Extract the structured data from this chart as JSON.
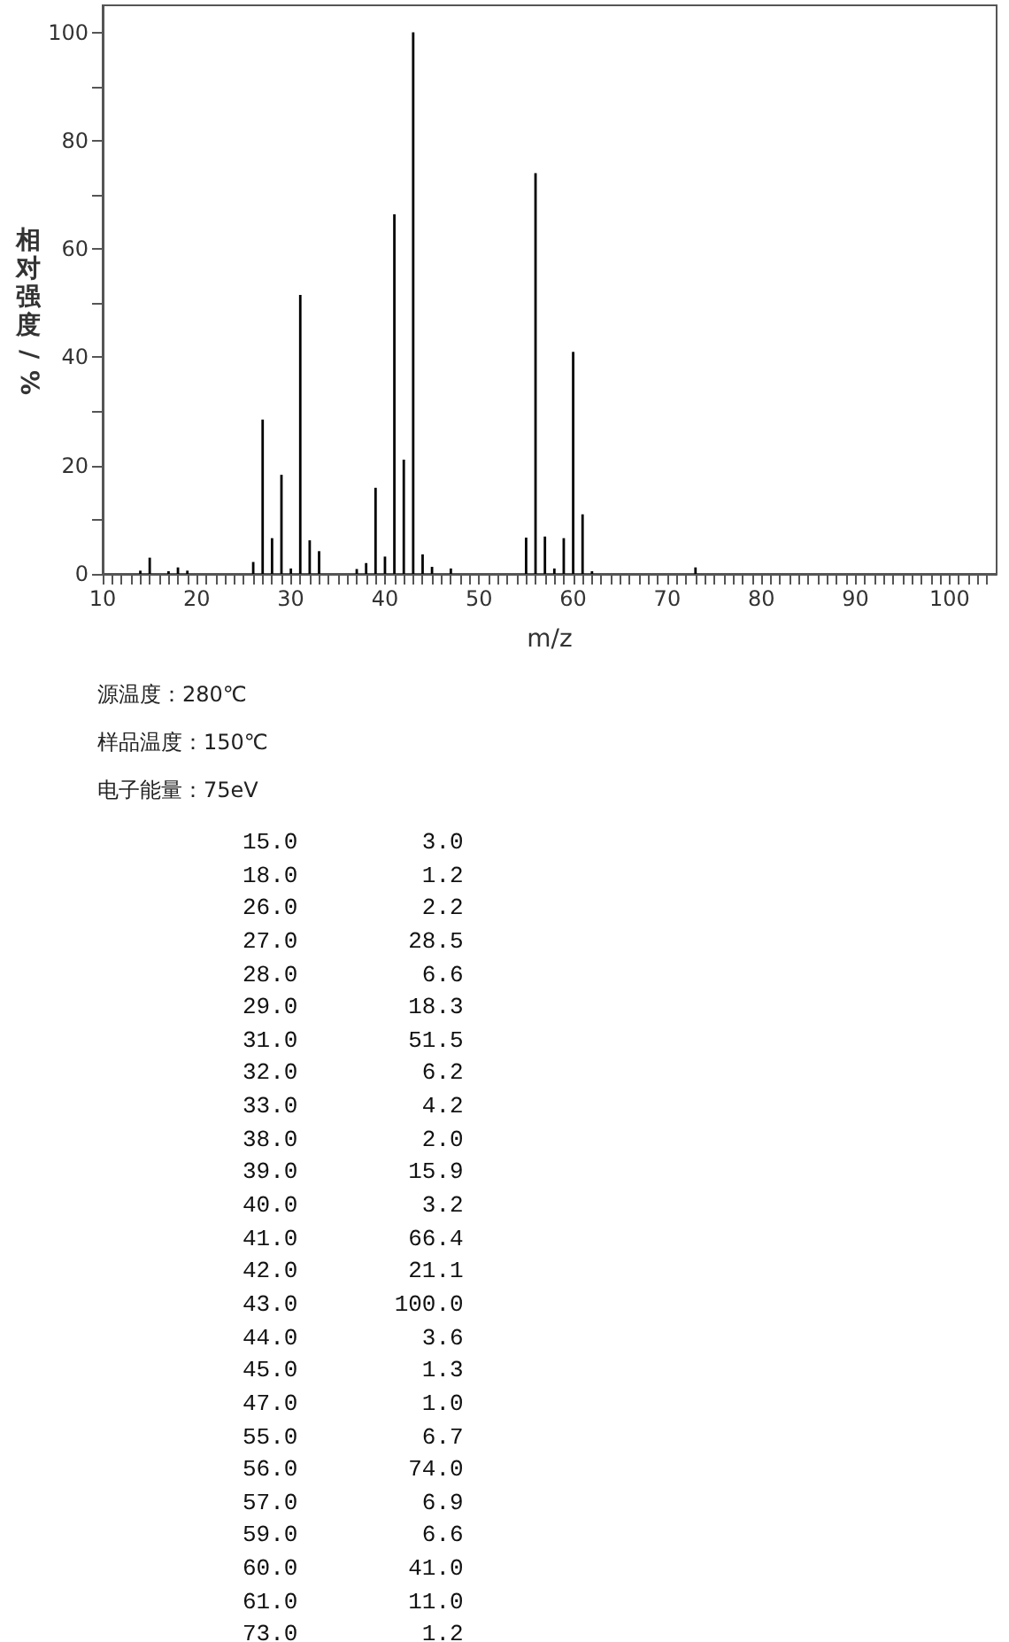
{
  "chart_data": {
    "type": "bar",
    "xlabel": "m/z",
    "ylabel": "相对强度/%",
    "x": [
      14,
      15,
      17,
      18,
      19,
      26,
      27,
      28,
      29,
      30,
      31,
      32,
      33,
      37,
      38,
      39,
      40,
      41,
      42,
      43,
      44,
      45,
      47,
      55,
      56,
      57,
      58,
      59,
      60,
      61,
      62,
      73
    ],
    "series": [
      {
        "color": "#000000",
        "values": [
          0.6,
          3.0,
          0.5,
          1.2,
          0.6,
          2.2,
          28.5,
          6.6,
          18.3,
          1.0,
          51.5,
          6.2,
          4.2,
          0.9,
          2.0,
          15.9,
          3.2,
          66.4,
          21.1,
          100.0,
          3.6,
          1.3,
          1.0,
          6.7,
          74.0,
          6.9,
          1.0,
          6.6,
          41.0,
          11.0,
          0.5,
          1.2
        ]
      }
    ],
    "xlim": [
      10,
      105
    ],
    "xticks": [
      10,
      {
        "value": 11,
        "label": null
      },
      {
        "value": 12,
        "label": null
      },
      {
        "value": 13,
        "label": null
      },
      {
        "value": 14,
        "label": null
      },
      {
        "value": 15,
        "label": null
      },
      {
        "value": 16,
        "label": null
      },
      {
        "value": 17,
        "label": null
      },
      {
        "value": 18,
        "label": null
      },
      {
        "value": 19,
        "label": null
      },
      20,
      {
        "value": 21,
        "label": null
      },
      {
        "value": 22,
        "label": null
      },
      {
        "value": 23,
        "label": null
      },
      {
        "value": 24,
        "label": null
      },
      {
        "value": 25,
        "label": null
      },
      {
        "value": 26,
        "label": null
      },
      {
        "value": 27,
        "label": null
      },
      {
        "value": 28,
        "label": null
      },
      {
        "value": 29,
        "label": null
      },
      30,
      {
        "value": 31,
        "label": null
      },
      {
        "value": 32,
        "label": null
      },
      {
        "value": 33,
        "label": null
      },
      {
        "value": 34,
        "label": null
      },
      {
        "value": 35,
        "label": null
      },
      {
        "value": 36,
        "label": null
      },
      {
        "value": 37,
        "label": null
      },
      {
        "value": 38,
        "label": null
      },
      {
        "value": 39,
        "label": null
      },
      40,
      {
        "value": 41,
        "label": null
      },
      {
        "value": 42,
        "label": null
      },
      {
        "value": 43,
        "label": null
      },
      {
        "value": 44,
        "label": null
      },
      {
        "value": 45,
        "label": null
      },
      {
        "value": 46,
        "label": null
      },
      {
        "value": 47,
        "label": null
      },
      {
        "value": 48,
        "label": null
      },
      {
        "value": 49,
        "label": null
      },
      50,
      {
        "value": 51,
        "label": null
      },
      {
        "value": 52,
        "label": null
      },
      {
        "value": 53,
        "label": null
      },
      {
        "value": 54,
        "label": null
      },
      {
        "value": 55,
        "label": null
      },
      {
        "value": 56,
        "label": null
      },
      {
        "value": 57,
        "label": null
      },
      {
        "value": 58,
        "label": null
      },
      {
        "value": 59,
        "label": null
      },
      60,
      {
        "value": 61,
        "label": null
      },
      {
        "value": 62,
        "label": null
      },
      {
        "value": 63,
        "label": null
      },
      {
        "value": 64,
        "label": null
      },
      {
        "value": 65,
        "label": null
      },
      {
        "value": 66,
        "label": null
      },
      {
        "value": 67,
        "label": null
      },
      {
        "value": 68,
        "label": null
      },
      {
        "value": 69,
        "label": null
      },
      70,
      {
        "value": 71,
        "label": null
      },
      {
        "value": 72,
        "label": null
      },
      {
        "value": 73,
        "label": null
      },
      {
        "value": 74,
        "label": null
      },
      {
        "value": 75,
        "label": null
      },
      {
        "value": 76,
        "label": null
      },
      {
        "value": 77,
        "label": null
      },
      {
        "value": 78,
        "label": null
      },
      {
        "value": 79,
        "label": null
      },
      80,
      {
        "value": 81,
        "label": null
      },
      {
        "value": 82,
        "label": null
      },
      {
        "value": 83,
        "label": null
      },
      {
        "value": 84,
        "label": null
      },
      {
        "value": 85,
        "label": null
      },
      {
        "value": 86,
        "label": null
      },
      {
        "value": 87,
        "label": null
      },
      {
        "value": 88,
        "label": null
      },
      {
        "value": 89,
        "label": null
      },
      90,
      {
        "value": 91,
        "label": null
      },
      {
        "value": 92,
        "label": null
      },
      {
        "value": 93,
        "label": null
      },
      {
        "value": 94,
        "label": null
      },
      {
        "value": 95,
        "label": null
      },
      {
        "value": 96,
        "label": null
      },
      {
        "value": 97,
        "label": null
      },
      {
        "value": 98,
        "label": null
      },
      {
        "value": 99,
        "label": null
      },
      100,
      {
        "value": 101,
        "label": null
      },
      {
        "value": 102,
        "label": null
      },
      {
        "value": 103,
        "label": null
      },
      {
        "value": 104,
        "label": null
      }
    ],
    "ylim": [
      0,
      105
    ],
    "yticks": [
      0,
      {
        "value": 10,
        "label": null
      },
      20,
      {
        "value": 30,
        "label": null
      },
      40,
      {
        "value": 50,
        "label": null
      },
      60,
      {
        "value": 70,
        "label": null
      },
      80,
      {
        "value": 90,
        "label": null
      },
      100
    ],
    "annotations": [
      "源温度：280℃",
      "样品温度：150℃",
      "电子能量：75eV",
      "15.0         3.0",
      "18.0         1.2",
      "26.0         2.2",
      "27.0        28.5",
      "28.0         6.6",
      "29.0        18.3",
      "31.0        51.5",
      "32.0         6.2",
      "33.0         4.2",
      "38.0         2.0",
      "39.0        15.9",
      "40.0         3.2",
      "41.0        66.4",
      "42.0        21.1",
      "43.0       100.0",
      "44.0         3.6",
      "45.0         1.3",
      "47.0         1.0",
      "55.0         6.7",
      "56.0        74.0",
      "57.0         6.9",
      "59.0         6.6",
      "60.0        41.0",
      "61.0        11.0",
      "73.0         1.2"
    ]
  }
}
